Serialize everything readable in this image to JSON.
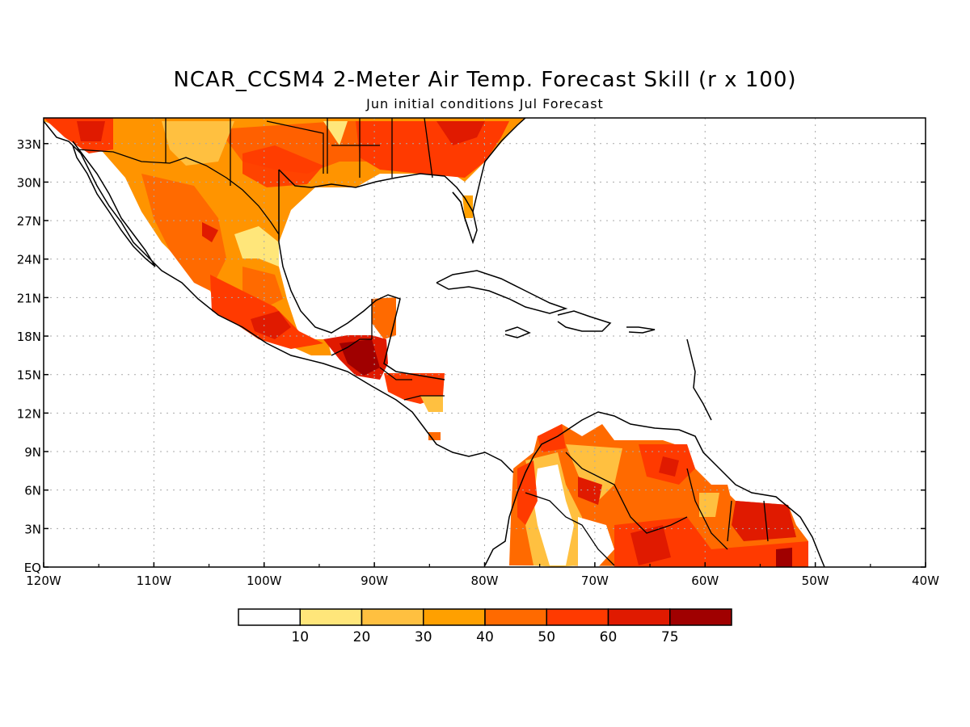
{
  "title": "NCAR_CCSM4 2-Meter Air Temp. Forecast Skill (r x 100)",
  "subtitle": "Jun initial conditions  Jul Forecast",
  "map": {
    "lon_range": [
      -120,
      -40
    ],
    "lat_range": [
      0,
      35
    ],
    "grid": true,
    "x_ticks": [
      "120W",
      "110W",
      "100W",
      "90W",
      "80W",
      "70W",
      "60W",
      "50W",
      "40W"
    ],
    "y_ticks": [
      "EQ",
      "3N",
      "6N",
      "9N",
      "12N",
      "15N",
      "18N",
      "21N",
      "24N",
      "27N",
      "30N",
      "33N"
    ]
  },
  "colorbar": {
    "labels": [
      "10",
      "20",
      "30",
      "40",
      "50",
      "60",
      "75"
    ],
    "colors": [
      "#ffffff",
      "#ffe67a",
      "#ffc040",
      "#ffa000",
      "#ff6a00",
      "#ff3a00",
      "#e01a00",
      "#a00000"
    ]
  }
}
